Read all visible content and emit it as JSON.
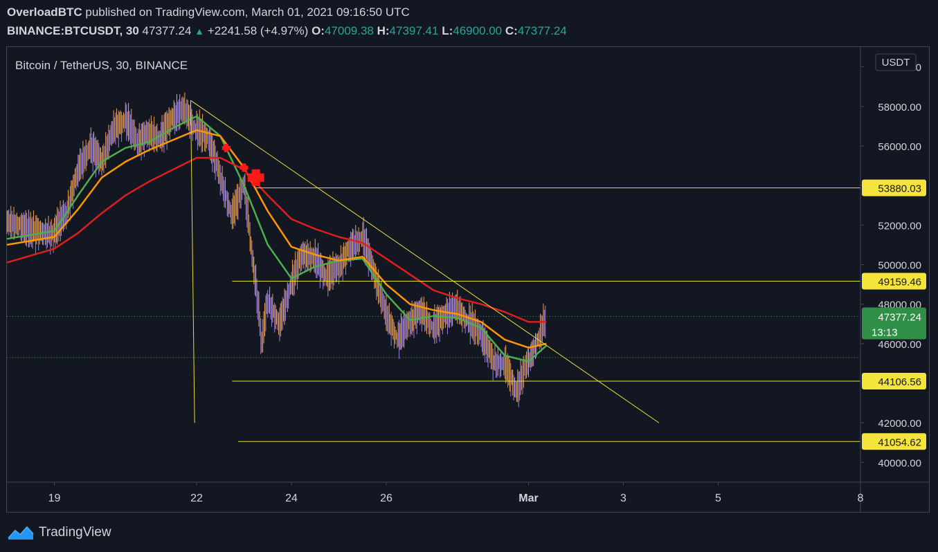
{
  "header": {
    "author": "OverloadBTC",
    "published_text": "published on TradingView.com, March 01, 2021 09:16:50 UTC",
    "symbol": "BINANCE:BTCUSDT, 30",
    "last": "47377.24",
    "change": "+2241.58 (+4.97%)",
    "o_label": "O:",
    "o": "47009.38",
    "h_label": "H:",
    "h": "47397.41",
    "l_label": "L:",
    "l": "46900.00",
    "c_label": "C:",
    "c": "47377.24"
  },
  "chart_title": "Bitcoin / TetherUS, 30, BINANCE",
  "currency": "USDT",
  "footer": {
    "brand": "TradingView"
  },
  "colors": {
    "background": "#131722",
    "grid_border": "#434651",
    "text": "#d1d4dc",
    "up": "#26a69a",
    "candle_up": "#9b7fe0",
    "candle_down": "#f0a24a",
    "ema_fast": "#4caf50",
    "ema_mid": "#ff9800",
    "ema_slow": "#e01e1e",
    "drawing": "#e9dd3e",
    "level_label_bg": "#f5e43c",
    "price_label_bg": "#2f8f46",
    "signal_marker": "#ff1a1a"
  },
  "chart_data": {
    "type": "line",
    "title": "Bitcoin / TetherUS, 30, BINANCE",
    "ylabel": "USDT",
    "ylim": [
      39000,
      61000
    ],
    "xlim": [
      "2021-02-18",
      "2021-03-08"
    ],
    "y_ticks": [
      "40000.00",
      "42000.00",
      "44000.00",
      "46000.00",
      "48000.00",
      "50000.00",
      "52000.00",
      "54000.00",
      "56000.00",
      "58000.00",
      "60000.00"
    ],
    "x_ticks": [
      {
        "label": "19",
        "date": "2021-02-19"
      },
      {
        "label": "22",
        "date": "2021-02-22"
      },
      {
        "label": "24",
        "date": "2021-02-24"
      },
      {
        "label": "26",
        "date": "2021-02-26"
      },
      {
        "label": "Mar",
        "date": "2021-03-01"
      },
      {
        "label": "3",
        "date": "2021-03-03"
      },
      {
        "label": "5",
        "date": "2021-03-05"
      },
      {
        "label": "8",
        "date": "2021-03-08"
      }
    ],
    "price_series": [
      [
        "2021-02-18 00:00",
        52300
      ],
      [
        "2021-02-18 12:00",
        51700
      ],
      [
        "2021-02-19 00:00",
        51600
      ],
      [
        "2021-02-19 06:00",
        52600
      ],
      [
        "2021-02-19 12:00",
        54800
      ],
      [
        "2021-02-19 18:00",
        55900
      ],
      [
        "2021-02-20 00:00",
        55200
      ],
      [
        "2021-02-20 06:00",
        56900
      ],
      [
        "2021-02-20 12:00",
        57300
      ],
      [
        "2021-02-20 18:00",
        56200
      ],
      [
        "2021-02-21 00:00",
        56700
      ],
      [
        "2021-02-21 06:00",
        56400
      ],
      [
        "2021-02-21 12:00",
        57400
      ],
      [
        "2021-02-21 18:00",
        57900
      ],
      [
        "2021-02-22 00:00",
        56800
      ],
      [
        "2021-02-22 06:00",
        56300
      ],
      [
        "2021-02-22 12:00",
        54500
      ],
      [
        "2021-02-22 18:00",
        52500
      ],
      [
        "2021-02-23 00:00",
        54000
      ],
      [
        "2021-02-23 03:00",
        51500
      ],
      [
        "2021-02-23 06:00",
        49000
      ],
      [
        "2021-02-23 09:00",
        46000
      ],
      [
        "2021-02-23 12:00",
        48300
      ],
      [
        "2021-02-23 18:00",
        47000
      ],
      [
        "2021-02-24 00:00",
        49000
      ],
      [
        "2021-02-24 06:00",
        50600
      ],
      [
        "2021-02-24 12:00",
        50300
      ],
      [
        "2021-02-24 18:00",
        49300
      ],
      [
        "2021-02-25 00:00",
        49900
      ],
      [
        "2021-02-25 06:00",
        50900
      ],
      [
        "2021-02-25 12:00",
        51400
      ],
      [
        "2021-02-25 18:00",
        49500
      ],
      [
        "2021-02-26 00:00",
        47500
      ],
      [
        "2021-02-26 06:00",
        46200
      ],
      [
        "2021-02-26 12:00",
        47100
      ],
      [
        "2021-02-26 18:00",
        47700
      ],
      [
        "2021-02-27 00:00",
        46800
      ],
      [
        "2021-02-27 06:00",
        47400
      ],
      [
        "2021-02-27 12:00",
        47900
      ],
      [
        "2021-02-27 18:00",
        47100
      ],
      [
        "2021-02-28 00:00",
        46400
      ],
      [
        "2021-02-28 06:00",
        45200
      ],
      [
        "2021-02-28 12:00",
        45000
      ],
      [
        "2021-02-28 18:00",
        43500
      ],
      [
        "2021-03-01 00:00",
        45200
      ],
      [
        "2021-03-01 06:00",
        46500
      ],
      [
        "2021-03-01 09:00",
        47377
      ]
    ],
    "series": [
      {
        "name": "",
        "color": "#4caf50",
        "points": [
          [
            "2021-02-18 00:00",
            51300
          ],
          [
            "2021-02-19 00:00",
            51700
          ],
          [
            "2021-02-19 12:00",
            53500
          ],
          [
            "2021-02-20 00:00",
            55200
          ],
          [
            "2021-02-20 12:00",
            55900
          ],
          [
            "2021-02-21 00:00",
            56200
          ],
          [
            "2021-02-21 12:00",
            56900
          ],
          [
            "2021-02-22 00:00",
            57500
          ],
          [
            "2021-02-22 12:00",
            56500
          ],
          [
            "2021-02-23 00:00",
            54000
          ],
          [
            "2021-02-23 12:00",
            51000
          ],
          [
            "2021-02-24 00:00",
            49300
          ],
          [
            "2021-02-24 12:00",
            49900
          ],
          [
            "2021-02-25 00:00",
            50200
          ],
          [
            "2021-02-25 12:00",
            50300
          ],
          [
            "2021-02-26 00:00",
            48500
          ],
          [
            "2021-02-26 12:00",
            47200
          ],
          [
            "2021-02-27 00:00",
            47400
          ],
          [
            "2021-02-27 12:00",
            47300
          ],
          [
            "2021-02-28 00:00",
            46800
          ],
          [
            "2021-02-28 12:00",
            45400
          ],
          [
            "2021-03-01 00:00",
            45100
          ],
          [
            "2021-03-01 09:00",
            45900
          ]
        ]
      },
      {
        "name": "",
        "color": "#ff9800",
        "points": [
          [
            "2021-02-18 00:00",
            51000
          ],
          [
            "2021-02-19 00:00",
            51400
          ],
          [
            "2021-02-19 12:00",
            52800
          ],
          [
            "2021-02-20 00:00",
            54400
          ],
          [
            "2021-02-20 12:00",
            55200
          ],
          [
            "2021-02-21 00:00",
            55800
          ],
          [
            "2021-02-21 12:00",
            56300
          ],
          [
            "2021-02-22 00:00",
            56800
          ],
          [
            "2021-02-22 12:00",
            56500
          ],
          [
            "2021-02-23 00:00",
            54900
          ],
          [
            "2021-02-23 12:00",
            52700
          ],
          [
            "2021-02-24 00:00",
            50900
          ],
          [
            "2021-02-24 12:00",
            50500
          ],
          [
            "2021-02-25 00:00",
            50200
          ],
          [
            "2021-02-25 12:00",
            50400
          ],
          [
            "2021-02-26 00:00",
            49000
          ],
          [
            "2021-02-26 12:00",
            48000
          ],
          [
            "2021-02-27 00:00",
            47700
          ],
          [
            "2021-02-27 12:00",
            47500
          ],
          [
            "2021-02-28 00:00",
            47100
          ],
          [
            "2021-02-28 12:00",
            46200
          ],
          [
            "2021-03-01 00:00",
            45800
          ],
          [
            "2021-03-01 09:00",
            46000
          ]
        ]
      },
      {
        "name": "",
        "color": "#e01e1e",
        "points": [
          [
            "2021-02-18 00:00",
            50100
          ],
          [
            "2021-02-19 00:00",
            50800
          ],
          [
            "2021-02-19 12:00",
            51600
          ],
          [
            "2021-02-20 00:00",
            52600
          ],
          [
            "2021-02-20 12:00",
            53500
          ],
          [
            "2021-02-21 00:00",
            54200
          ],
          [
            "2021-02-21 12:00",
            54800
          ],
          [
            "2021-02-22 00:00",
            55400
          ],
          [
            "2021-02-22 12:00",
            55400
          ],
          [
            "2021-02-23 00:00",
            54800
          ],
          [
            "2021-02-23 12:00",
            53500
          ],
          [
            "2021-02-24 00:00",
            52300
          ],
          [
            "2021-02-24 12:00",
            51800
          ],
          [
            "2021-02-25 00:00",
            51400
          ],
          [
            "2021-02-25 12:00",
            51100
          ],
          [
            "2021-02-26 00:00",
            50300
          ],
          [
            "2021-02-26 12:00",
            49500
          ],
          [
            "2021-02-27 00:00",
            48700
          ],
          [
            "2021-02-27 12:00",
            48300
          ],
          [
            "2021-02-28 00:00",
            48000
          ],
          [
            "2021-02-28 12:00",
            47600
          ],
          [
            "2021-03-01 00:00",
            47100
          ],
          [
            "2021-03-01 09:00",
            47100
          ]
        ]
      }
    ],
    "horizontal_levels": [
      {
        "label": "53880.03",
        "value": 53880.03,
        "from": "2021-02-23 06:00"
      },
      {
        "label": "49159.46",
        "value": 49159.46,
        "from": "2021-02-22 18:00"
      },
      {
        "label": "44106.56",
        "value": 44106.56,
        "from": "2021-02-22 18:00"
      },
      {
        "label": "41054.62",
        "value": 41054.62,
        "from": "2021-02-22 21:00"
      }
    ],
    "trendlines": [
      {
        "from": [
          "2021-02-21 21:00",
          58300
        ],
        "to": [
          "2021-03-03 18:00",
          42000
        ]
      },
      {
        "from": [
          "2021-02-21 21:00",
          58300
        ],
        "to": [
          "2021-02-21 23:00",
          42000
        ]
      }
    ],
    "dotted_levels": [
      47377.24,
      45300
    ],
    "signal_markers": [
      {
        "date": "2021-02-22 15:00",
        "value": 55900,
        "size": "small"
      },
      {
        "date": "2021-02-23 00:00",
        "value": 54900,
        "size": "small"
      },
      {
        "date": "2021-02-23 06:00",
        "value": 54400,
        "size": "large"
      }
    ],
    "last_price": {
      "label": "47377.24",
      "value": 47377.24,
      "countdown": "13:13"
    },
    "grid": false
  }
}
